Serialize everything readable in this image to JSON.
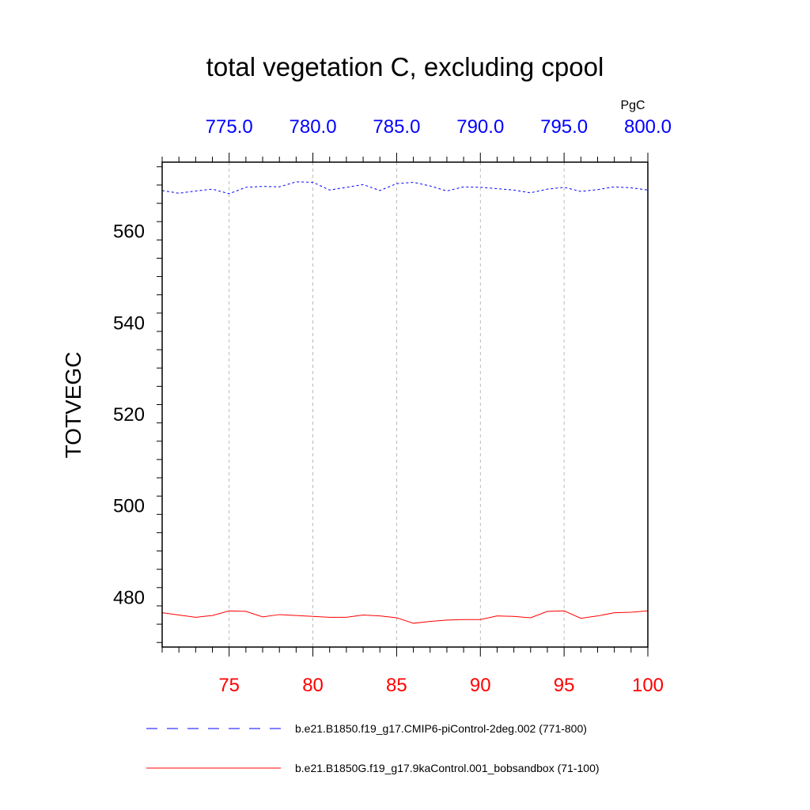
{
  "chart_data": {
    "type": "line",
    "title": "total vegetation C, excluding cpool",
    "ylabel": "TOTVEGC",
    "xlabel": "",
    "top_axis_units": "PgC",
    "grid": "vertical dashed at major bottom ticks",
    "bottom_axis": {
      "range": [
        71,
        100
      ],
      "tick_values": [
        75,
        80,
        85,
        90,
        95,
        100
      ],
      "tick_labels": [
        "75",
        "80",
        "85",
        "90",
        "95",
        "100"
      ],
      "color": "#ff0000"
    },
    "top_axis": {
      "range": [
        771,
        800
      ],
      "tick_values": [
        775,
        780,
        785,
        790,
        795,
        800
      ],
      "tick_labels": [
        "775.0",
        "780.0",
        "785.0",
        "790.0",
        "795.0",
        "800.0"
      ],
      "color": "#0000ff"
    },
    "left_axis": {
      "range": [
        469,
        575
      ],
      "tick_values": [
        480,
        500,
        520,
        540,
        560
      ],
      "tick_labels": [
        "480",
        "500",
        "520",
        "540",
        "560"
      ]
    },
    "series": [
      {
        "name": "b.e21.B1850.f19_g17.CMIP6-piControl-2deg.002 (771-800)",
        "color": "#0000ff",
        "style": "dashed",
        "axis": "top",
        "x": [
          771,
          772,
          773,
          774,
          775,
          776,
          777,
          778,
          779,
          780,
          781,
          782,
          783,
          784,
          785,
          786,
          787,
          788,
          789,
          790,
          791,
          792,
          793,
          794,
          795,
          796,
          797,
          798,
          799,
          800
        ],
        "values": [
          568.8,
          568.2,
          568.7,
          569.1,
          568.1,
          569.5,
          569.7,
          569.6,
          570.7,
          570.6,
          568.9,
          569.5,
          570.1,
          568.8,
          570.3,
          570.6,
          569.8,
          568.7,
          569.6,
          569.5,
          569.2,
          568.9,
          568.3,
          569.1,
          569.5,
          568.6,
          569.0,
          569.6,
          569.4,
          568.9
        ]
      },
      {
        "name": "b.e21.B1850G.f19_g17.9kaControl.001_bobsandbox (71-100)",
        "color": "#ff0000",
        "style": "solid",
        "axis": "bottom",
        "x": [
          71,
          72,
          73,
          74,
          75,
          76,
          77,
          78,
          79,
          80,
          81,
          82,
          83,
          84,
          85,
          86,
          87,
          88,
          89,
          90,
          91,
          92,
          93,
          94,
          95,
          96,
          97,
          98,
          99,
          100
        ],
        "values": [
          476.5,
          476.0,
          475.5,
          475.9,
          476.9,
          476.8,
          475.6,
          476.1,
          475.9,
          475.7,
          475.5,
          475.5,
          476.0,
          475.8,
          475.4,
          474.2,
          474.6,
          474.9,
          475.0,
          475.0,
          475.8,
          475.7,
          475.4,
          476.8,
          476.9,
          475.3,
          475.8,
          476.5,
          476.6,
          476.9
        ]
      }
    ]
  }
}
